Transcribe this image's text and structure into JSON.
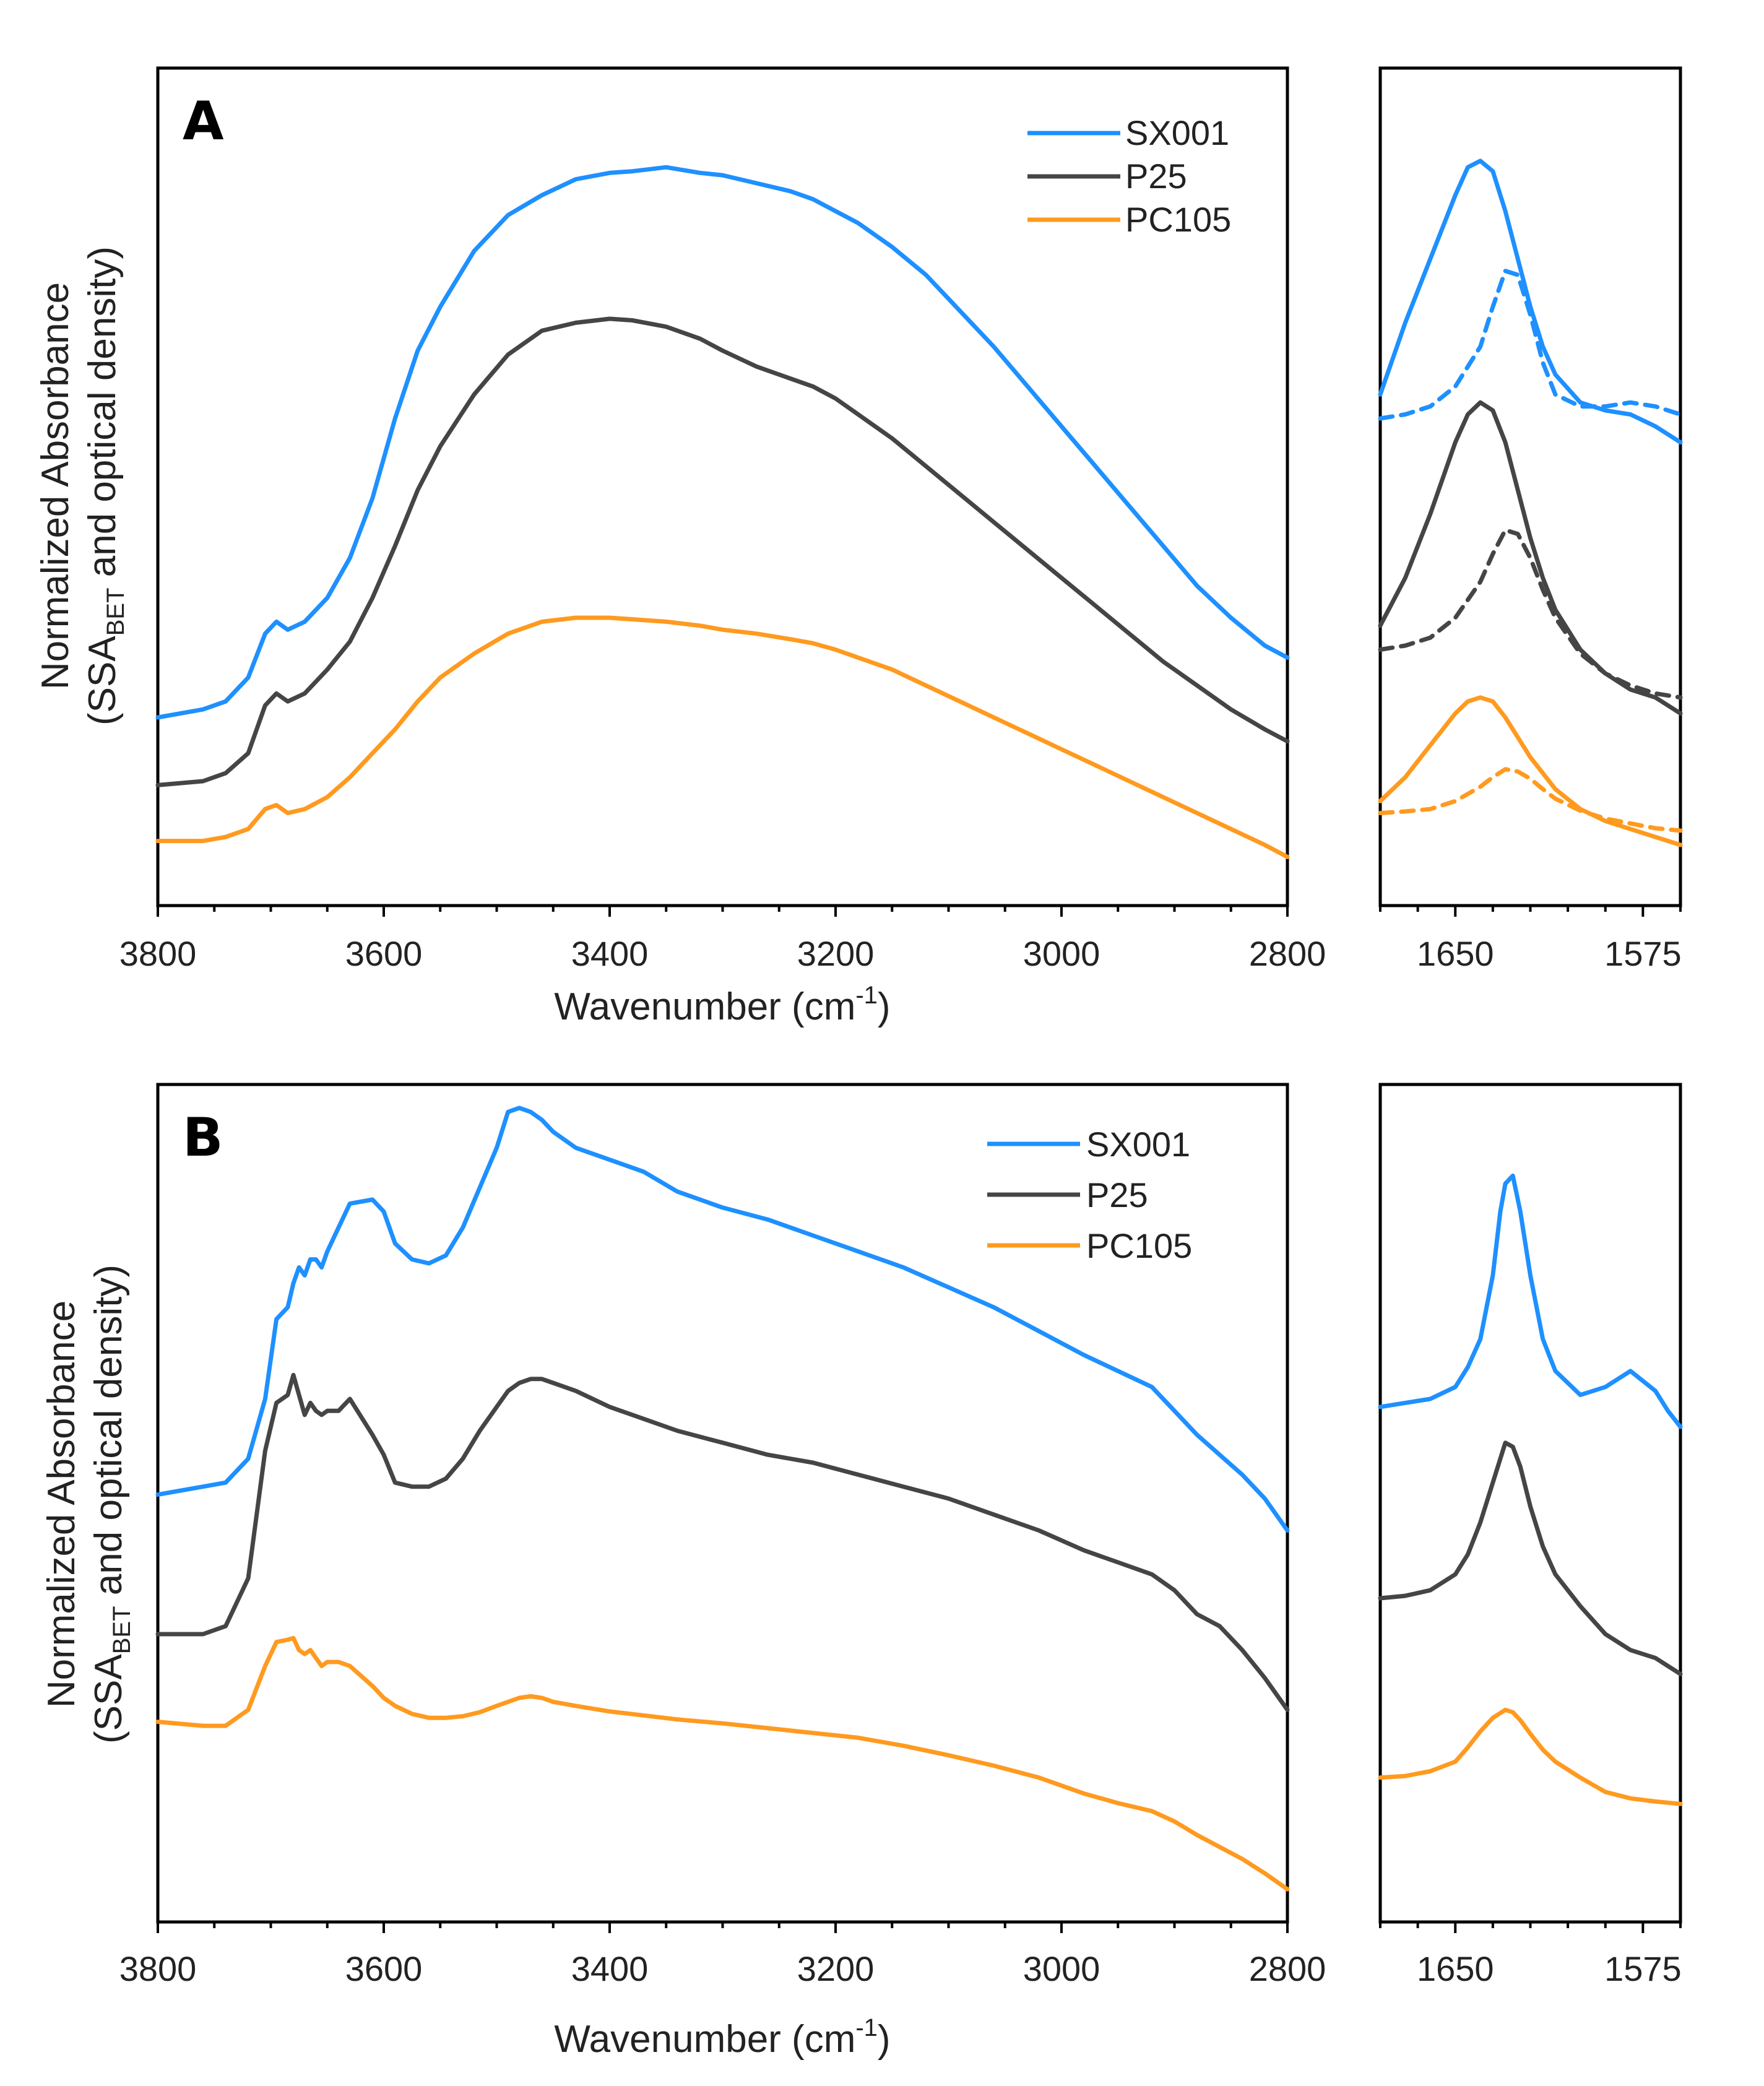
{
  "colors": {
    "SX001": "#1e90ff",
    "P25": "#454545",
    "PC105": "#ff9a1f"
  },
  "y_axis_label": {
    "line1": "Normalized Absorbance",
    "line2_prefix": "(SSA",
    "line2_sub": "BET",
    "line2_suffix": " and optical density)"
  },
  "x_axis_label": {
    "prefix": "Wavenumber (cm",
    "sup": "-1",
    "suffix": ")"
  },
  "legend": [
    "SX001",
    "P25",
    "PC105"
  ],
  "chart_data": [
    {
      "type": "line",
      "panel": "A",
      "title": "A",
      "xlabel": "Wavenumber (cm-1)",
      "ylabel": "Normalized Absorbance (SSA_BET and optical density)",
      "xlim": [
        3800,
        2800
      ],
      "ylim": [
        0,
        100
      ],
      "xticks": [
        3800,
        3600,
        3400,
        3200,
        3000,
        2800
      ],
      "legend_position": "top-right",
      "series": [
        {
          "name": "SX001",
          "x": [
            3800,
            3760,
            3740,
            3720,
            3705,
            3695,
            3685,
            3670,
            3650,
            3630,
            3610,
            3590,
            3570,
            3550,
            3520,
            3490,
            3460,
            3430,
            3400,
            3380,
            3350,
            3320,
            3300,
            3270,
            3240,
            3220,
            3200,
            3180,
            3150,
            3120,
            3090,
            3060,
            3030,
            3000,
            2970,
            2940,
            2910,
            2880,
            2850,
            2820,
            2800
          ],
          "y": [
            20.5,
            21.5,
            22.5,
            25.5,
            31,
            32.5,
            31.5,
            32.5,
            35.5,
            40.5,
            48,
            58,
            66.5,
            72,
            79,
            83.5,
            86,
            88,
            88.8,
            89,
            89.5,
            88.8,
            88.5,
            87.5,
            86.5,
            85.5,
            84,
            82.5,
            79.5,
            76,
            71.5,
            67,
            62,
            57,
            52,
            47,
            42,
            37,
            33,
            29.5,
            28
          ]
        },
        {
          "name": "P25",
          "x": [
            3800,
            3760,
            3740,
            3720,
            3705,
            3695,
            3685,
            3670,
            3650,
            3630,
            3610,
            3590,
            3570,
            3550,
            3520,
            3490,
            3460,
            3430,
            3400,
            3380,
            3350,
            3320,
            3300,
            3270,
            3240,
            3220,
            3200,
            3180,
            3150,
            3120,
            3090,
            3060,
            3030,
            3000,
            2970,
            2940,
            2910,
            2880,
            2850,
            2820,
            2800
          ],
          "y": [
            12,
            12.5,
            13.5,
            16,
            22,
            23.5,
            22.5,
            23.5,
            26.5,
            30,
            35.5,
            42,
            49,
            54.5,
            61,
            66,
            69,
            70,
            70.5,
            70.3,
            69.5,
            68,
            66.5,
            64.5,
            63,
            62,
            60.5,
            58.5,
            55.5,
            52,
            48.5,
            45,
            41.5,
            38,
            34.5,
            31,
            27.5,
            24.5,
            21.5,
            19,
            17.5
          ]
        },
        {
          "name": "PC105",
          "x": [
            3800,
            3760,
            3740,
            3720,
            3705,
            3695,
            3685,
            3670,
            3650,
            3630,
            3610,
            3590,
            3570,
            3550,
            3520,
            3490,
            3460,
            3430,
            3400,
            3380,
            3350,
            3320,
            3300,
            3270,
            3240,
            3220,
            3200,
            3180,
            3150,
            3120,
            3090,
            3060,
            3030,
            3000,
            2970,
            2940,
            2910,
            2880,
            2850,
            2820,
            2800
          ],
          "y": [
            5,
            5,
            5.5,
            6.5,
            9,
            9.5,
            8.5,
            9,
            10.5,
            13,
            16,
            19,
            22.5,
            25.5,
            28.5,
            31,
            32.5,
            33,
            33,
            32.8,
            32.5,
            32,
            31.5,
            31,
            30.3,
            29.8,
            29,
            28,
            26.5,
            24.5,
            22.5,
            20.5,
            18.5,
            16.5,
            14.5,
            12.5,
            10.5,
            8.5,
            6.5,
            4.5,
            3
          ]
        }
      ]
    },
    {
      "type": "line",
      "panel": "A-inset",
      "xlim": [
        1680,
        1560
      ],
      "ylim": [
        0,
        100
      ],
      "xticks": [
        1650,
        1575
      ],
      "note": "solid and dashed traces per sample",
      "series": [
        {
          "name": "SX001",
          "style": "solid",
          "x": [
            1680,
            1670,
            1660,
            1650,
            1645,
            1640,
            1635,
            1630,
            1625,
            1620,
            1615,
            1610,
            1600,
            1590,
            1580,
            1570,
            1560
          ],
          "y": [
            61,
            70,
            78,
            86,
            89.5,
            90.3,
            89,
            84,
            78,
            72,
            67,
            63.5,
            60,
            59,
            58.5,
            57,
            55
          ]
        },
        {
          "name": "SX001",
          "style": "dashed",
          "x": [
            1680,
            1670,
            1660,
            1650,
            1640,
            1635,
            1630,
            1625,
            1620,
            1615,
            1610,
            1600,
            1590,
            1580,
            1570,
            1560
          ],
          "y": [
            58,
            58.5,
            59.5,
            62,
            67,
            72,
            76.5,
            76,
            71,
            65,
            61,
            59.5,
            59.5,
            60,
            59.5,
            58.5
          ]
        },
        {
          "name": "P25",
          "style": "solid",
          "x": [
            1680,
            1670,
            1660,
            1650,
            1645,
            1640,
            1635,
            1630,
            1625,
            1620,
            1615,
            1610,
            1600,
            1590,
            1580,
            1570,
            1560
          ],
          "y": [
            32,
            38,
            46,
            55,
            58.5,
            60,
            59,
            55,
            49,
            43,
            38,
            34,
            29,
            26,
            24,
            23,
            21
          ]
        },
        {
          "name": "P25",
          "style": "dashed",
          "x": [
            1680,
            1670,
            1660,
            1650,
            1640,
            1635,
            1630,
            1625,
            1620,
            1615,
            1610,
            1600,
            1590,
            1580,
            1570,
            1560
          ],
          "y": [
            29,
            29.5,
            30.5,
            33,
            37.5,
            41,
            44,
            43.5,
            40.5,
            36.5,
            33,
            28.5,
            26,
            24.5,
            23.5,
            23
          ]
        },
        {
          "name": "PC105",
          "style": "solid",
          "x": [
            1680,
            1670,
            1660,
            1650,
            1645,
            1640,
            1635,
            1630,
            1625,
            1620,
            1615,
            1610,
            1600,
            1590,
            1580,
            1570,
            1560
          ],
          "y": [
            10,
            13,
            17,
            21,
            22.5,
            23,
            22.5,
            20.5,
            18,
            15.5,
            13.5,
            11.5,
            9,
            7.5,
            6.5,
            5.5,
            4.5
          ]
        },
        {
          "name": "PC105",
          "style": "dashed",
          "x": [
            1680,
            1670,
            1660,
            1650,
            1640,
            1635,
            1630,
            1625,
            1620,
            1615,
            1610,
            1600,
            1590,
            1580,
            1570,
            1560
          ],
          "y": [
            8.5,
            8.7,
            9,
            10,
            11.8,
            13,
            14,
            13.7,
            12.8,
            11.5,
            10.3,
            8.8,
            7.8,
            7.2,
            6.6,
            6.3
          ]
        }
      ]
    },
    {
      "type": "line",
      "panel": "B",
      "title": "B",
      "xlabel": "Wavenumber (cm-1)",
      "ylabel": "Normalized Absorbance (SSA_BET and optical density)",
      "xlim": [
        3800,
        2800
      ],
      "ylim": [
        0,
        100
      ],
      "xticks": [
        3800,
        3600,
        3400,
        3200,
        3000,
        2800
      ],
      "legend_position": "top-right",
      "series": [
        {
          "name": "SX001",
          "x": [
            3800,
            3760,
            3740,
            3720,
            3705,
            3695,
            3685,
            3680,
            3675,
            3670,
            3665,
            3660,
            3655,
            3650,
            3640,
            3630,
            3610,
            3600,
            3590,
            3575,
            3560,
            3545,
            3530,
            3515,
            3500,
            3490,
            3480,
            3470,
            3460,
            3450,
            3430,
            3400,
            3370,
            3340,
            3300,
            3260,
            3220,
            3180,
            3140,
            3100,
            3060,
            3020,
            2980,
            2950,
            2920,
            2900,
            2880,
            2860,
            2840,
            2820,
            2800
          ],
          "y": [
            50.5,
            51.5,
            52,
            55,
            62.5,
            72.5,
            74,
            77,
            79,
            78,
            80,
            80,
            79,
            81,
            84,
            87,
            87.5,
            86,
            82,
            80,
            79.5,
            80.5,
            84,
            89,
            94,
            98.5,
            99,
            98.5,
            97.5,
            96,
            94,
            92.5,
            91,
            88.5,
            86.5,
            85,
            83,
            81,
            79,
            76.5,
            74,
            71,
            68,
            66,
            64,
            61,
            58,
            55.5,
            53,
            50,
            46
          ]
        },
        {
          "name": "P25",
          "x": [
            3800,
            3760,
            3740,
            3720,
            3705,
            3695,
            3685,
            3680,
            3675,
            3670,
            3665,
            3660,
            3655,
            3650,
            3640,
            3630,
            3610,
            3600,
            3590,
            3575,
            3560,
            3545,
            3530,
            3515,
            3500,
            3490,
            3480,
            3470,
            3460,
            3450,
            3430,
            3400,
            3370,
            3340,
            3300,
            3260,
            3220,
            3180,
            3140,
            3100,
            3060,
            3020,
            2980,
            2950,
            2920,
            2900,
            2880,
            2860,
            2840,
            2820,
            2800
          ],
          "y": [
            33,
            33,
            34,
            40,
            56,
            62,
            63,
            65.5,
            63,
            60.5,
            62,
            61,
            60.5,
            61,
            61,
            62.5,
            58,
            55.5,
            52,
            51.5,
            51.5,
            52.5,
            55,
            58.5,
            61.5,
            63.5,
            64.5,
            65,
            65,
            64.5,
            63.5,
            61.5,
            60,
            58.5,
            57,
            55.5,
            54.5,
            53,
            51.5,
            50,
            48,
            46,
            43.5,
            42,
            40.5,
            38.5,
            35.5,
            34,
            31,
            27.5,
            23.5
          ]
        },
        {
          "name": "PC105",
          "x": [
            3800,
            3760,
            3740,
            3720,
            3705,
            3695,
            3685,
            3680,
            3675,
            3670,
            3665,
            3660,
            3655,
            3650,
            3640,
            3630,
            3610,
            3600,
            3590,
            3575,
            3560,
            3545,
            3530,
            3515,
            3500,
            3490,
            3480,
            3470,
            3460,
            3450,
            3430,
            3400,
            3370,
            3340,
            3300,
            3260,
            3220,
            3180,
            3140,
            3100,
            3060,
            3020,
            2980,
            2950,
            2920,
            2900,
            2880,
            2860,
            2840,
            2820,
            2800
          ],
          "y": [
            22,
            21.5,
            21.5,
            23.5,
            29,
            32,
            32.3,
            32.5,
            31,
            30.5,
            31,
            30,
            29,
            29.5,
            29.5,
            29,
            26.5,
            25,
            24,
            23,
            22.5,
            22.5,
            22.7,
            23.2,
            24,
            24.5,
            25,
            25.2,
            25,
            24.5,
            24,
            23.3,
            22.8,
            22.3,
            21.8,
            21.2,
            20.6,
            20,
            19,
            17.8,
            16.5,
            15,
            13,
            11.8,
            10.8,
            9.5,
            7.8,
            6.3,
            4.8,
            3,
            1
          ]
        }
      ]
    },
    {
      "type": "line",
      "panel": "B-inset",
      "xlim": [
        1680,
        1560
      ],
      "ylim": [
        0,
        100
      ],
      "xticks": [
        1650,
        1575
      ],
      "series": [
        {
          "name": "SX001",
          "x": [
            1680,
            1670,
            1660,
            1650,
            1645,
            1640,
            1635,
            1632,
            1630,
            1627,
            1624,
            1620,
            1615,
            1610,
            1600,
            1590,
            1580,
            1570,
            1565,
            1560
          ],
          "y": [
            61.5,
            62,
            62.5,
            64,
            66.5,
            70,
            78,
            86,
            89.5,
            90.5,
            86,
            78,
            70,
            66,
            63,
            64,
            66,
            63.5,
            61,
            59
          ]
        },
        {
          "name": "P25",
          "x": [
            1680,
            1670,
            1660,
            1650,
            1645,
            1640,
            1635,
            1632,
            1630,
            1627,
            1624,
            1620,
            1615,
            1610,
            1600,
            1590,
            1580,
            1570,
            1565,
            1560
          ],
          "y": [
            37.5,
            37.8,
            38.5,
            40.5,
            43,
            47,
            52,
            55,
            57,
            56.5,
            54,
            49,
            44,
            40.5,
            36.5,
            33,
            31,
            30,
            29,
            28
          ]
        },
        {
          "name": "PC105",
          "x": [
            1680,
            1670,
            1660,
            1650,
            1645,
            1640,
            1635,
            1630,
            1627,
            1624,
            1620,
            1615,
            1610,
            1600,
            1590,
            1580,
            1570,
            1560
          ],
          "y": [
            15,
            15.2,
            15.8,
            17,
            18.8,
            20.8,
            22.5,
            23.5,
            23.2,
            22.2,
            20.5,
            18.5,
            17,
            15,
            13.2,
            12.4,
            12,
            11.7
          ]
        }
      ]
    }
  ]
}
